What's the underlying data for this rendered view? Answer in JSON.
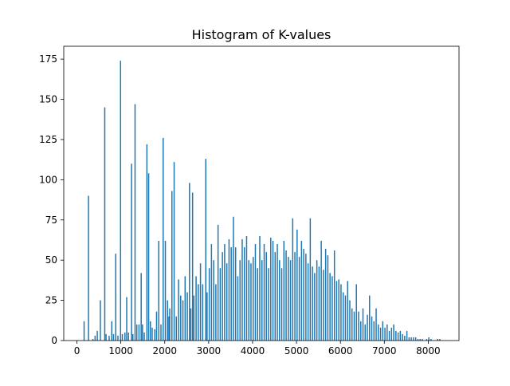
{
  "chart_data": {
    "type": "bar",
    "title": "Histogram of K-values",
    "xlabel": "",
    "ylabel": "",
    "xlim": [
      -300,
      8700
    ],
    "ylim": [
      0,
      183
    ],
    "xticks": [
      0,
      1000,
      2000,
      3000,
      4000,
      5000,
      6000,
      7000,
      8000
    ],
    "yticks": [
      0,
      25,
      50,
      75,
      100,
      125,
      150,
      175
    ],
    "grid": false,
    "color": "#1f77b4",
    "bin_width": 27,
    "bins": [
      [
        150,
        12
      ],
      [
        250,
        90
      ],
      [
        350,
        1
      ],
      [
        400,
        3
      ],
      [
        450,
        6
      ],
      [
        520,
        25
      ],
      [
        620,
        145
      ],
      [
        650,
        4
      ],
      [
        720,
        3
      ],
      [
        780,
        12
      ],
      [
        820,
        4
      ],
      [
        870,
        54
      ],
      [
        920,
        3
      ],
      [
        980,
        174
      ],
      [
        1020,
        4
      ],
      [
        1080,
        5
      ],
      [
        1120,
        27
      ],
      [
        1160,
        5
      ],
      [
        1230,
        110
      ],
      [
        1260,
        4
      ],
      [
        1310,
        147
      ],
      [
        1350,
        10
      ],
      [
        1400,
        10
      ],
      [
        1450,
        42
      ],
      [
        1480,
        10
      ],
      [
        1520,
        5
      ],
      [
        1580,
        122
      ],
      [
        1620,
        104
      ],
      [
        1660,
        12
      ],
      [
        1700,
        8
      ],
      [
        1760,
        7
      ],
      [
        1800,
        18
      ],
      [
        1850,
        62
      ],
      [
        1900,
        10
      ],
      [
        1950,
        126
      ],
      [
        2000,
        62
      ],
      [
        2050,
        25
      ],
      [
        2080,
        15
      ],
      [
        2100,
        20
      ],
      [
        2150,
        93
      ],
      [
        2200,
        111
      ],
      [
        2250,
        15
      ],
      [
        2300,
        38
      ],
      [
        2350,
        28
      ],
      [
        2400,
        25
      ],
      [
        2450,
        40
      ],
      [
        2500,
        30
      ],
      [
        2550,
        98
      ],
      [
        2580,
        20
      ],
      [
        2620,
        92
      ],
      [
        2650,
        28
      ],
      [
        2700,
        40
      ],
      [
        2750,
        35
      ],
      [
        2800,
        48
      ],
      [
        2850,
        35
      ],
      [
        2920,
        113
      ],
      [
        2950,
        30
      ],
      [
        3000,
        45
      ],
      [
        3050,
        60
      ],
      [
        3100,
        50
      ],
      [
        3150,
        35
      ],
      [
        3200,
        72
      ],
      [
        3250,
        45
      ],
      [
        3300,
        55
      ],
      [
        3350,
        60
      ],
      [
        3400,
        48
      ],
      [
        3450,
        63
      ],
      [
        3500,
        58
      ],
      [
        3550,
        77
      ],
      [
        3600,
        58
      ],
      [
        3650,
        40
      ],
      [
        3700,
        50
      ],
      [
        3750,
        63
      ],
      [
        3800,
        58
      ],
      [
        3850,
        65
      ],
      [
        3900,
        50
      ],
      [
        3950,
        48
      ],
      [
        4000,
        52
      ],
      [
        4050,
        60
      ],
      [
        4100,
        45
      ],
      [
        4150,
        65
      ],
      [
        4200,
        50
      ],
      [
        4250,
        60
      ],
      [
        4300,
        55
      ],
      [
        4350,
        45
      ],
      [
        4400,
        64
      ],
      [
        4450,
        62
      ],
      [
        4500,
        55
      ],
      [
        4550,
        60
      ],
      [
        4600,
        50
      ],
      [
        4650,
        45
      ],
      [
        4700,
        62
      ],
      [
        4750,
        56
      ],
      [
        4800,
        52
      ],
      [
        4850,
        50
      ],
      [
        4900,
        76
      ],
      [
        4950,
        55
      ],
      [
        5000,
        69
      ],
      [
        5050,
        52
      ],
      [
        5100,
        62
      ],
      [
        5150,
        57
      ],
      [
        5200,
        54
      ],
      [
        5250,
        48
      ],
      [
        5300,
        76
      ],
      [
        5350,
        46
      ],
      [
        5400,
        42
      ],
      [
        5450,
        50
      ],
      [
        5500,
        46
      ],
      [
        5550,
        62
      ],
      [
        5600,
        44
      ],
      [
        5650,
        57
      ],
      [
        5700,
        53
      ],
      [
        5750,
        42
      ],
      [
        5800,
        40
      ],
      [
        5850,
        56
      ],
      [
        5900,
        37
      ],
      [
        5950,
        38
      ],
      [
        6000,
        35
      ],
      [
        6050,
        30
      ],
      [
        6100,
        28
      ],
      [
        6150,
        37
      ],
      [
        6200,
        25
      ],
      [
        6250,
        20
      ],
      [
        6300,
        18
      ],
      [
        6350,
        35
      ],
      [
        6400,
        18
      ],
      [
        6450,
        12
      ],
      [
        6500,
        20
      ],
      [
        6550,
        10
      ],
      [
        6600,
        16
      ],
      [
        6650,
        28
      ],
      [
        6700,
        15
      ],
      [
        6750,
        12
      ],
      [
        6800,
        20
      ],
      [
        6850,
        10
      ],
      [
        6900,
        8
      ],
      [
        6950,
        12
      ],
      [
        7000,
        8
      ],
      [
        7050,
        10
      ],
      [
        7100,
        6
      ],
      [
        7150,
        8
      ],
      [
        7200,
        10
      ],
      [
        7250,
        6
      ],
      [
        7300,
        5
      ],
      [
        7350,
        6
      ],
      [
        7400,
        4
      ],
      [
        7450,
        3
      ],
      [
        7500,
        6
      ],
      [
        7550,
        2
      ],
      [
        7600,
        2
      ],
      [
        7650,
        2
      ],
      [
        7700,
        2
      ],
      [
        7750,
        1
      ],
      [
        7800,
        1
      ],
      [
        7850,
        1
      ],
      [
        7950,
        1
      ],
      [
        8000,
        2
      ],
      [
        8050,
        1
      ],
      [
        8200,
        1
      ],
      [
        8250,
        1
      ]
    ]
  }
}
